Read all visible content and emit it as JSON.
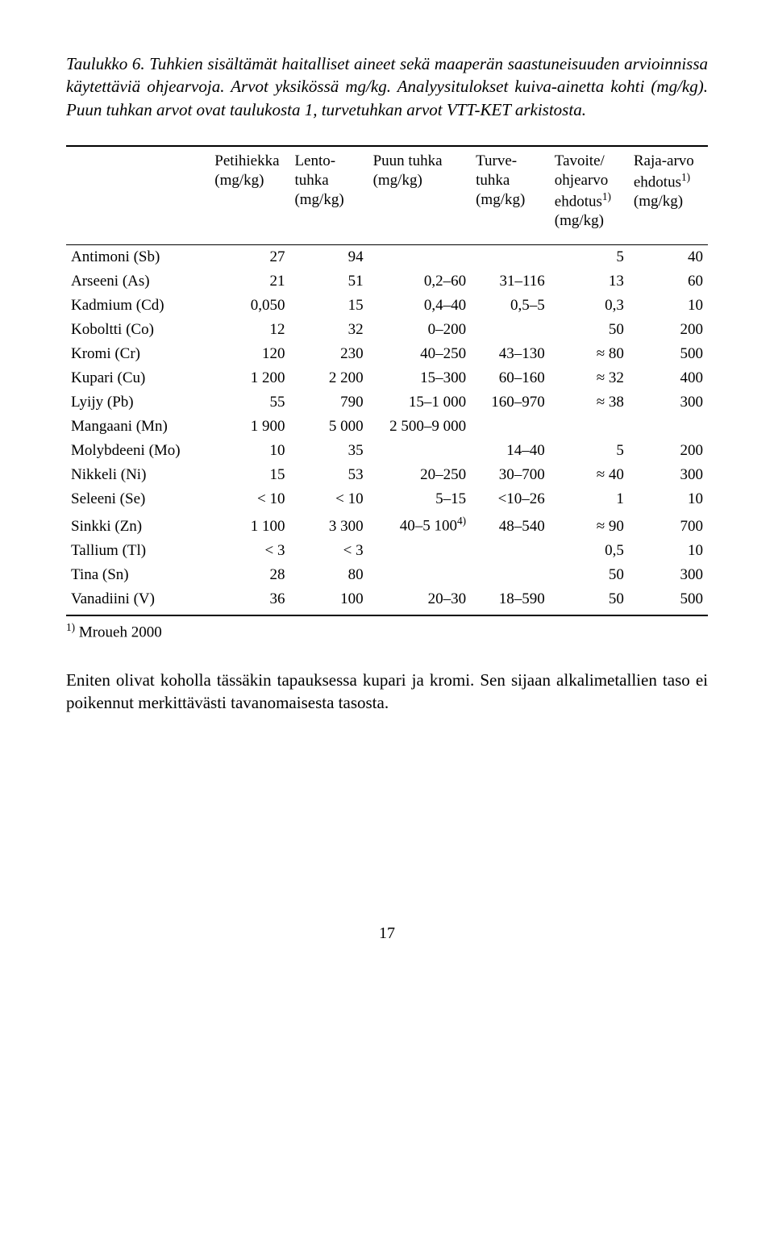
{
  "caption": "Taulukko 6. Tuhkien sisältämät haitalliset aineet sekä maaperän saastuneisuuden arvioinnissa käytettäviä ohjearvoja. Arvot yksikössä mg/kg. Analyysitulokset kuiva-ainetta kohti (mg/kg). Puun tuhkan arvot ovat taulukosta 1, turvetuhkan arvot VTT-KET arkistosta.",
  "headers": {
    "c0": "",
    "c1": "Petihiekka (mg/kg)",
    "c2": "Lento-tuhka (mg/kg)",
    "c3": "Puun tuhka (mg/kg)",
    "c4": "Turve-tuhka (mg/kg)",
    "c5_a": "Tavoite/ ohjearvo ehdotus",
    "c5_b": " (mg/kg)",
    "c6_a": "Raja-arvo ehdotus",
    "c6_b": " (mg/kg)",
    "sup": "1)"
  },
  "rows": [
    {
      "label": "Antimoni (Sb)",
      "c1": "27",
      "c2": "94",
      "c3": "",
      "c4": "",
      "c5": "5",
      "c6": "40"
    },
    {
      "label": "Arseeni (As)",
      "c1": "21",
      "c2": "51",
      "c3": "0,2–60",
      "c4": "31–116",
      "c5": "13",
      "c6": "60"
    },
    {
      "label": "Kadmium (Cd)",
      "c1": "0,050",
      "c2": "15",
      "c3": "0,4–40",
      "c4": "0,5–5",
      "c5": "0,3",
      "c6": "10"
    },
    {
      "label": "Koboltti (Co)",
      "c1": "12",
      "c2": "32",
      "c3": "0–200",
      "c4": "",
      "c5": "50",
      "c6": "200"
    },
    {
      "label": "Kromi (Cr)",
      "c1": "120",
      "c2": "230",
      "c3": "40–250",
      "c4": "43–130",
      "c5": "≈ 80",
      "c6": "500"
    },
    {
      "label": "Kupari (Cu)",
      "c1": "1 200",
      "c2": "2 200",
      "c3": "15–300",
      "c4": "60–160",
      "c5": "≈ 32",
      "c6": "400"
    },
    {
      "label": "Lyijy (Pb)",
      "c1": "55",
      "c2": "790",
      "c3": "15–1 000",
      "c4": "160–970",
      "c5": "≈ 38",
      "c6": "300"
    },
    {
      "label": "Mangaani (Mn)",
      "c1": "1 900",
      "c2": "5 000",
      "c3": "2 500–9 000",
      "c4": "",
      "c5": "",
      "c6": ""
    },
    {
      "label": "Molybdeeni (Mo)",
      "c1": "10",
      "c2": "35",
      "c3": "",
      "c4": "14–40",
      "c5": "5",
      "c6": "200"
    },
    {
      "label": "Nikkeli (Ni)",
      "c1": "15",
      "c2": "53",
      "c3": "20–250",
      "c4": "30–700",
      "c5": "≈ 40",
      "c6": "300"
    },
    {
      "label": "Seleeni (Se)",
      "c1": "< 10",
      "c2": "< 10",
      "c3": "5–15",
      "c4": "<10–26",
      "c5": "1",
      "c6": "10"
    },
    {
      "label": "Sinkki (Zn)",
      "c1": "1 100",
      "c2": "3 300",
      "c3": "40–5 100",
      "c3_sup": "4)",
      "c4": "48–540",
      "c5": "≈ 90",
      "c6": "700"
    },
    {
      "label": "Tallium (Tl)",
      "c1": "< 3",
      "c2": "< 3",
      "c3": "",
      "c4": "",
      "c5": "0,5",
      "c6": "10"
    },
    {
      "label": "Tina (Sn)",
      "c1": "28",
      "c2": "80",
      "c3": "",
      "c4": "",
      "c5": "50",
      "c6": "300"
    },
    {
      "label": "Vanadiini (V)",
      "c1": "36",
      "c2": "100",
      "c3": "20–30",
      "c4": "18–590",
      "c5": "50",
      "c6": "500"
    }
  ],
  "footnote_sup": "1)",
  "footnote_text": " Mroueh 2000",
  "bodytext": "Eniten olivat koholla tässäkin tapauksessa kupari ja kromi. Sen sijaan alkalimetallien taso ei poikennut merkittävästi tavanomaisesta tasosta.",
  "pagenum": "17",
  "colors": {
    "text": "#000000",
    "bg": "#ffffff",
    "rule": "#000000"
  }
}
